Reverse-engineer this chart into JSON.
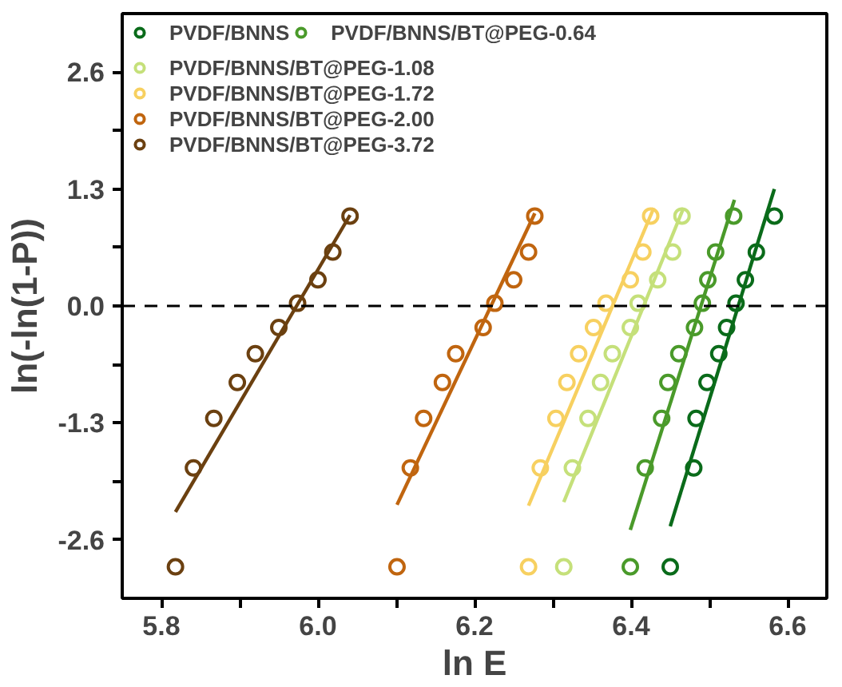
{
  "chart_data": {
    "type": "scatter",
    "xlabel": "ln E",
    "ylabel": "ln(-ln(1-P))",
    "xlim": [
      5.75,
      6.65
    ],
    "ylim": [
      -3.25,
      3.25
    ],
    "xticks": [
      5.8,
      {
        "value": 5.9,
        "label": null
      },
      {
        "value": 6.0,
        "label": "6.0"
      },
      {
        "value": 6.1,
        "label": null
      },
      6.2,
      {
        "value": 6.3,
        "label": null
      },
      6.4,
      {
        "value": 6.5,
        "label": null
      },
      6.6
    ],
    "yticks": [
      -2.6,
      {
        "value": -1.95,
        "label": null
      },
      -1.3,
      {
        "value": -0.65,
        "label": null
      },
      {
        "value": 0.0,
        "label": "0.0"
      },
      {
        "value": 0.65,
        "label": null
      },
      1.3,
      {
        "value": 1.95,
        "label": null
      },
      2.6
    ],
    "grid": false,
    "legend": "top left",
    "marker": "circle",
    "ref_lines": [
      {
        "axis": "y",
        "value": 0,
        "color": "#000000",
        "line_style": "dashed"
      }
    ],
    "series": [
      {
        "name": "PVDF/BNNS",
        "color": "#0a6b1a",
        "x": [
          6.45,
          6.48,
          6.483,
          6.497,
          6.512,
          6.522,
          6.534,
          6.546,
          6.56,
          6.583
        ],
        "values": [
          -2.9,
          -1.8,
          -1.25,
          -0.85,
          -0.53,
          -0.24,
          0.03,
          0.29,
          0.6,
          1.0
        ]
      },
      {
        "name": "PVDF/BNNS/BT@PEG-0.64",
        "color": "#4a9a2a",
        "x": [
          6.399,
          6.418,
          6.439,
          6.447,
          6.461,
          6.481,
          6.491,
          6.498,
          6.508,
          6.531
        ],
        "values": [
          -2.9,
          -1.8,
          -1.25,
          -0.85,
          -0.53,
          -0.24,
          0.03,
          0.29,
          0.6,
          1.0
        ]
      },
      {
        "name": "PVDF/BNNS/BT@PEG-1.08",
        "color": "#c5e07a",
        "x": [
          6.314,
          6.325,
          6.345,
          6.361,
          6.376,
          6.399,
          6.409,
          6.434,
          6.453,
          6.465
        ],
        "values": [
          -2.9,
          -1.8,
          -1.25,
          -0.85,
          -0.53,
          -0.24,
          0.03,
          0.29,
          0.6,
          1.0
        ]
      },
      {
        "name": "PVDF/BNNS/BT@PEG-1.72",
        "color": "#f7d060",
        "x": [
          6.269,
          6.284,
          6.304,
          6.318,
          6.333,
          6.352,
          6.368,
          6.399,
          6.415,
          6.425
        ],
        "values": [
          -2.9,
          -1.8,
          -1.25,
          -0.85,
          -0.53,
          -0.24,
          0.03,
          0.29,
          0.6,
          1.0
        ]
      },
      {
        "name": "PVDF/BNNS/BT@PEG-2.00",
        "color": "#c0650f",
        "x": [
          6.101,
          6.118,
          6.135,
          6.159,
          6.176,
          6.211,
          6.226,
          6.25,
          6.269,
          6.277
        ],
        "values": [
          -2.9,
          -1.8,
          -1.25,
          -0.85,
          -0.53,
          -0.24,
          0.03,
          0.29,
          0.6,
          1.0
        ]
      },
      {
        "name": "PVDF/BNNS/BT@PEG-3.72",
        "color": "#6b4010",
        "x": [
          5.818,
          5.841,
          5.867,
          5.897,
          5.92,
          5.95,
          5.974,
          6.0,
          6.019,
          6.041
        ],
        "values": [
          -2.9,
          -1.8,
          -1.25,
          -0.85,
          -0.53,
          -0.24,
          0.03,
          0.29,
          0.6,
          1.0
        ]
      },
      {
        "type": "line",
        "marker": "none",
        "color": "#0a6b1a",
        "x": [
          6.45,
          6.583
        ],
        "values": [
          -2.45,
          1.3
        ]
      },
      {
        "type": "line",
        "marker": "none",
        "color": "#4a9a2a",
        "x": [
          6.399,
          6.532
        ],
        "values": [
          -2.49,
          1.18
        ]
      },
      {
        "type": "line",
        "marker": "none",
        "color": "#c5e07a",
        "x": [
          6.314,
          6.467
        ],
        "values": [
          -2.18,
          1.09
        ]
      },
      {
        "type": "line",
        "marker": "none",
        "color": "#f7d060",
        "x": [
          6.269,
          6.429
        ],
        "values": [
          -2.22,
          1.09
        ]
      },
      {
        "type": "line",
        "marker": "none",
        "color": "#c0650f",
        "x": [
          6.101,
          6.277
        ],
        "values": [
          -2.21,
          1.03
        ]
      },
      {
        "type": "line",
        "marker": "none",
        "color": "#6b4010",
        "x": [
          5.818,
          6.041
        ],
        "values": [
          -2.29,
          1.01
        ]
      }
    ]
  }
}
